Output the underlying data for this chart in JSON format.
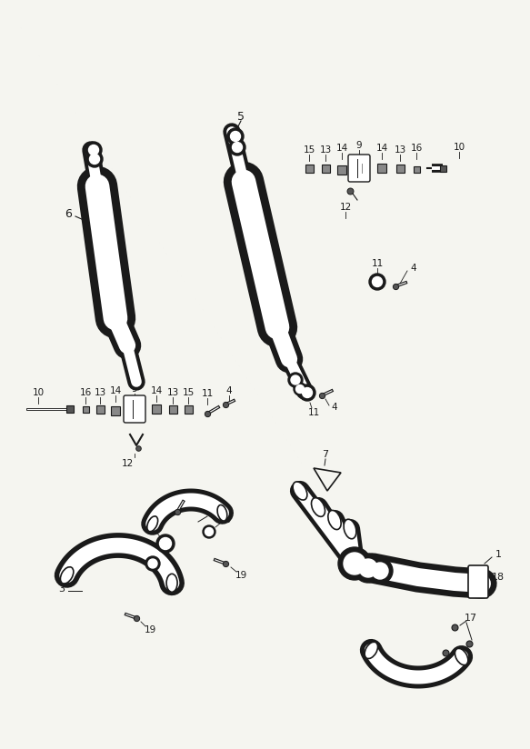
{
  "background_color": "#f5f5f0",
  "line_color": "#1a1a1a",
  "figure_width": 5.83,
  "figure_height": 8.24,
  "dpi": 100
}
